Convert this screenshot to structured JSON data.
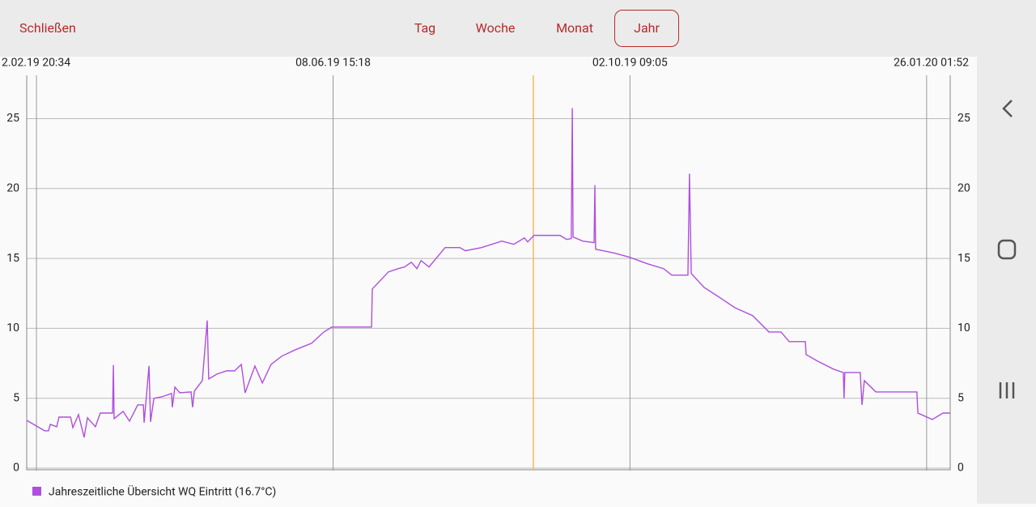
{
  "header": {
    "close": "Schließen",
    "tabs": [
      "Tag",
      "Woche",
      "Monat",
      "Jahr"
    ]
  },
  "chart_data": {
    "type": "line",
    "x": [
      -3.8,
      3.2,
      4.7,
      5.4,
      7.9,
      8.8,
      13.3,
      14.2,
      16.4,
      18.6,
      19.9,
      23.0,
      24.9,
      29.7,
      30.0,
      30.3,
      33.8,
      36.3,
      39.5,
      41.7,
      42.0,
      43.9,
      44.5,
      45.8,
      48.9,
      52.7,
      53.0,
      54.0,
      55.9,
      60.3,
      60.9,
      61.6,
      64.7,
      66.6,
      67.2,
      70.4,
      74.2,
      77.3,
      79.9,
      81.4,
      85.2,
      88.1,
      91.5,
      95.6,
      101.0,
      107.3,
      112.1,
      115.2,
      130.7,
      131.0,
      137.3,
      141.1,
      143.6,
      146.2,
      148.4,
      150.0,
      153.1,
      159.4,
      165.1,
      167.3,
      173.6,
      181.5,
      186.2,
      190.3,
      191.6,
      194.1,
      204.2,
      206.8,
      208.6,
      209.0,
      209.3,
      213.1,
      217.5,
      217.8,
      218.1,
      225.7,
      231.4,
      238.3,
      244.6,
      247.8,
      254.1,
      254.7,
      255.4,
      260.4,
      266.7,
      272.4,
      279.4,
      285.7,
      290.4,
      293.6,
      299.9,
      300.2,
      304.6,
      310.9,
      314.7,
      315.0,
      315.3,
      321.3,
      322.0,
      322.9,
      327.4,
      343.4,
      343.8,
      349.4,
      353.6,
      356.4
    ],
    "series": [
      {
        "name": "Jahreszeitliche Übersicht WQ Eintritt (16.7°C)",
        "color": "#b04ee0",
        "values": [
          3.42,
          2.67,
          2.67,
          3.13,
          2.96,
          3.65,
          3.65,
          2.9,
          3.83,
          2.2,
          3.6,
          2.96,
          3.94,
          3.94,
          7.37,
          3.54,
          4.06,
          3.36,
          4.52,
          4.52,
          3.25,
          7.31,
          3.31,
          4.99,
          5.1,
          5.34,
          4.35,
          5.8,
          5.39,
          5.45,
          4.35,
          5.51,
          6.26,
          10.56,
          6.38,
          6.73,
          6.96,
          6.96,
          7.42,
          5.39,
          7.31,
          6.09,
          7.42,
          8.0,
          8.47,
          8.93,
          9.74,
          10.09,
          10.09,
          12.82,
          14.04,
          14.27,
          14.39,
          14.73,
          14.27,
          14.85,
          14.39,
          15.78,
          15.78,
          15.55,
          15.78,
          16.24,
          16.01,
          16.47,
          16.18,
          16.65,
          16.65,
          16.36,
          16.42,
          25.75,
          16.53,
          16.24,
          16.13,
          20.24,
          15.66,
          15.37,
          15.08,
          14.62,
          14.27,
          13.81,
          13.81,
          21.06,
          13.92,
          12.93,
          12.18,
          11.48,
          10.9,
          9.74,
          9.74,
          9.05,
          9.05,
          8.12,
          7.66,
          7.08,
          6.84,
          4.99,
          6.84,
          6.84,
          4.52,
          6.26,
          5.45,
          5.45,
          3.94,
          3.48,
          3.94,
          3.94
        ]
      }
    ],
    "xlim": [
      -3.8,
      356.4
    ],
    "xticks": [
      {
        "value": 0,
        "label": "2.02.19 20:34"
      },
      {
        "value": 115.7,
        "label": "08.06.19 15:18"
      },
      {
        "value": 231.5,
        "label": "02.10.19 09:05"
      },
      {
        "value": 347.2,
        "label": "26.01.20 01:52"
      }
    ],
    "ylim": [
      0,
      28.1
    ],
    "yticks": [
      0,
      5,
      10,
      15,
      20,
      25
    ],
    "grid": true,
    "cursor_x": 193.8,
    "cursor_color": "#f5b85a"
  }
}
